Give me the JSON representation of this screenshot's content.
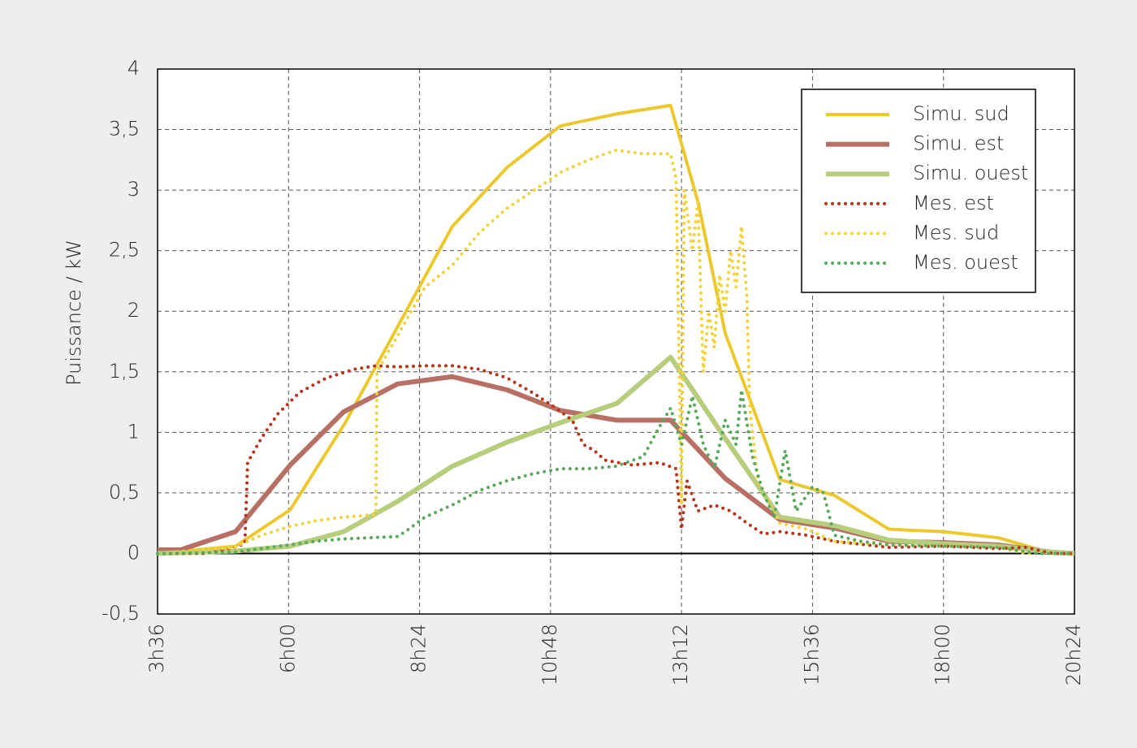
{
  "chart_data": {
    "type": "line",
    "y_label": "Puissance / kW",
    "xlim": [
      3.6,
      20.4
    ],
    "xticks": [
      {
        "value": 3.6,
        "label": "3h36"
      },
      {
        "value": 6,
        "label": "6h00"
      },
      {
        "value": 8.4,
        "label": "8h24"
      },
      {
        "value": 10.8,
        "label": "10h48"
      },
      {
        "value": 13.2,
        "label": "13h12"
      },
      {
        "value": 15.6,
        "label": "15h36"
      },
      {
        "value": 18,
        "label": "18h00"
      },
      {
        "value": 20.4,
        "label": "20h24"
      }
    ],
    "ylim": [
      -0.5,
      4
    ],
    "yticks": [
      {
        "value": -0.5,
        "label": "-0,5"
      },
      0,
      {
        "value": 0.5,
        "label": "0,5"
      },
      1,
      {
        "value": 1.5,
        "label": "1,5"
      },
      2,
      {
        "value": 2.5,
        "label": "2,5"
      },
      3,
      {
        "value": 3.5,
        "label": "3,5"
      },
      4
    ],
    "grid": true,
    "legend": "top-right",
    "series": [
      {
        "name": "Simu. sud",
        "color": "#ebc92e",
        "style": "solid",
        "x": [
          3.6,
          5.03,
          6.03,
          7.04,
          9.0,
          10.01,
          10.98,
          12.02,
          13.0,
          13.51,
          14.0,
          15.0,
          16.0,
          17.0,
          18.0,
          19.0,
          20.0,
          20.4
        ],
        "values": [
          0,
          0.06,
          0.36,
          1.08,
          2.7,
          3.19,
          3.53,
          3.63,
          3.7,
          2.89,
          1.82,
          0.61,
          0.48,
          0.2,
          0.18,
          0.13,
          0,
          0
        ]
      },
      {
        "name": "Simu. est",
        "color": "#b86f64",
        "style": "solid",
        "x": [
          3.6,
          4.02,
          5.03,
          6.03,
          7.01,
          8.0,
          9.0,
          10.01,
          10.98,
          12.02,
          13.0,
          14.0,
          15.0,
          16.0,
          17.0,
          18.0,
          19.0,
          20.0,
          20.4
        ],
        "values": [
          0.03,
          0.03,
          0.18,
          0.73,
          1.17,
          1.4,
          1.46,
          1.35,
          1.18,
          1.1,
          1.1,
          0.62,
          0.28,
          0.21,
          0.1,
          0.09,
          0.07,
          0.01,
          0
        ]
      },
      {
        "name": "Simu. ouest",
        "color": "#b6cd7b",
        "style": "solid",
        "x": [
          3.6,
          5.03,
          6.03,
          7.01,
          8.0,
          9.0,
          10.01,
          10.98,
          12.02,
          13.0,
          14.0,
          15.0,
          16.0,
          17.0,
          18.0,
          19.0,
          20.0,
          20.4
        ],
        "values": [
          0,
          0.02,
          0.06,
          0.18,
          0.43,
          0.72,
          0.92,
          1.08,
          1.24,
          1.62,
          0.95,
          0.3,
          0.23,
          0.11,
          0.08,
          0.06,
          0.01,
          0
        ]
      },
      {
        "name": "Mes. est",
        "color": "#b8341c",
        "style": "dotted",
        "x": [
          3.6,
          4.5,
          5.0,
          5.2,
          5.25,
          5.5,
          5.8,
          6.2,
          6.7,
          7.2,
          7.6,
          8.0,
          8.5,
          9.0,
          9.5,
          10.0,
          10.5,
          10.9,
          11.2,
          11.4,
          11.6,
          11.8,
          12.3,
          12.8,
          13.1,
          13.2,
          13.3,
          13.5,
          13.8,
          14.1,
          14.4,
          14.7,
          15.0,
          15.5,
          16.0,
          17.0,
          18.0,
          19.0,
          19.5,
          20.0,
          20.4
        ],
        "values": [
          0,
          0,
          0.05,
          0.08,
          0.75,
          0.95,
          1.15,
          1.33,
          1.45,
          1.52,
          1.55,
          1.54,
          1.55,
          1.55,
          1.52,
          1.45,
          1.32,
          1.2,
          1.1,
          0.9,
          0.85,
          0.77,
          0.73,
          0.75,
          0.7,
          0.2,
          0.6,
          0.35,
          0.4,
          0.35,
          0.25,
          0.16,
          0.18,
          0.15,
          0.1,
          0.05,
          0.06,
          0.04,
          0.05,
          0,
          0
        ]
      },
      {
        "name": "Mes. sud",
        "color": "#f2d43a",
        "style": "dotted",
        "x": [
          3.6,
          5.0,
          5.5,
          6.0,
          6.5,
          7.0,
          7.6,
          7.62,
          8.0,
          8.5,
          9.0,
          9.5,
          10.0,
          10.5,
          11.0,
          11.5,
          12.0,
          12.5,
          13.0,
          13.1,
          13.2,
          13.25,
          13.4,
          13.5,
          13.6,
          13.7,
          13.8,
          13.9,
          14.0,
          14.1,
          14.2,
          14.3,
          14.4,
          14.45,
          14.6,
          15.0,
          15.5,
          16.0,
          17.0,
          18.0,
          19.0,
          19.5,
          20.4
        ],
        "values": [
          0,
          0.05,
          0.15,
          0.22,
          0.27,
          0.3,
          0.32,
          1.5,
          1.8,
          2.2,
          2.38,
          2.65,
          2.85,
          3.0,
          3.15,
          3.25,
          3.33,
          3.3,
          3.3,
          3.1,
          0.4,
          3.0,
          2.5,
          2.9,
          1.5,
          2.0,
          1.7,
          2.3,
          2.0,
          2.5,
          2.2,
          2.7,
          2.1,
          1.2,
          0.6,
          0.25,
          0.2,
          0.1,
          0.07,
          0.06,
          0.05,
          0,
          0
        ]
      },
      {
        "name": "Mes. ouest",
        "color": "#5aa85a",
        "style": "dotted",
        "x": [
          3.6,
          5.0,
          6.0,
          6.5,
          7.0,
          7.5,
          8.0,
          8.2,
          8.5,
          9.0,
          9.5,
          10.0,
          10.5,
          11.0,
          11.5,
          12.0,
          12.5,
          12.8,
          13.0,
          13.2,
          13.4,
          13.6,
          13.8,
          14.0,
          14.2,
          14.3,
          14.5,
          14.7,
          14.9,
          15.1,
          15.3,
          15.6,
          15.8,
          16.0,
          16.5,
          17.0,
          18.0,
          19.0,
          19.7,
          20.4
        ],
        "values": [
          0,
          0.01,
          0.07,
          0.1,
          0.12,
          0.13,
          0.14,
          0.2,
          0.3,
          0.4,
          0.52,
          0.6,
          0.66,
          0.7,
          0.7,
          0.72,
          0.8,
          1.05,
          1.2,
          0.9,
          1.3,
          0.9,
          0.7,
          1.1,
          0.9,
          1.35,
          0.8,
          0.5,
          0.3,
          0.85,
          0.35,
          0.55,
          0.5,
          0.15,
          0.1,
          0.07,
          0.06,
          0.05,
          0,
          0
        ]
      }
    ]
  }
}
